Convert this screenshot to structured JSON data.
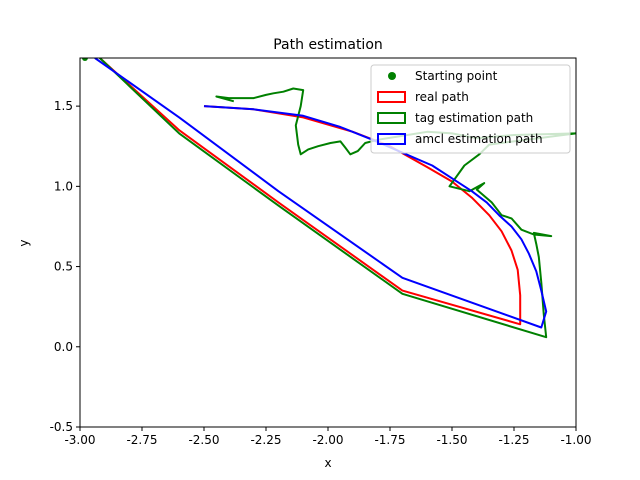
{
  "chart_data": {
    "type": "line",
    "title": "Path estimation",
    "xlabel": "x",
    "ylabel": "y",
    "xlim": [
      -3.0,
      -1.0
    ],
    "ylim": [
      -0.5,
      1.8
    ],
    "xticks": [
      "-3.00",
      "-2.75",
      "-2.50",
      "-2.25",
      "-2.00",
      "-1.75",
      "-1.50",
      "-1.25",
      "-1.00"
    ],
    "xtick_values": [
      -3.0,
      -2.75,
      -2.5,
      -2.25,
      -2.0,
      -1.75,
      -1.5,
      -1.25,
      -1.0
    ],
    "yticks": [
      "-0.5",
      "0.0",
      "0.5",
      "1.0",
      "1.5"
    ],
    "ytick_values": [
      -0.5,
      0.0,
      0.5,
      1.0,
      1.5
    ],
    "grid": false,
    "legend_position": "top-right",
    "legend": [
      {
        "label": "Starting point",
        "kind": "marker",
        "color": "#008000"
      },
      {
        "label": "real path",
        "kind": "patch",
        "color": "#ff0000"
      },
      {
        "label": "tag estimation path",
        "kind": "patch",
        "color": "#008000"
      },
      {
        "label": "amcl estimation path",
        "kind": "patch",
        "color": "#0000ff"
      }
    ],
    "series": [
      {
        "name": "real path",
        "color": "#ff0000",
        "points": [
          [
            -2.5,
            1.5
          ],
          [
            -2.3,
            1.48
          ],
          [
            -2.1,
            1.43
          ],
          [
            -1.9,
            1.34
          ],
          [
            -1.75,
            1.25
          ],
          [
            -1.6,
            1.12
          ],
          [
            -1.5,
            1.03
          ],
          [
            -1.42,
            0.93
          ],
          [
            -1.35,
            0.82
          ],
          [
            -1.3,
            0.72
          ],
          [
            -1.26,
            0.6
          ],
          [
            -1.235,
            0.48
          ],
          [
            -1.225,
            0.32
          ],
          [
            -1.225,
            0.14
          ],
          [
            -1.7,
            0.35
          ],
          [
            -2.2,
            0.9
          ],
          [
            -2.6,
            1.35
          ],
          [
            -2.92,
            1.8
          ]
        ]
      },
      {
        "name": "tag estimation path",
        "color": "#008000",
        "points": [
          [
            -2.38,
            1.53
          ],
          [
            -2.45,
            1.56
          ],
          [
            -2.4,
            1.55
          ],
          [
            -2.3,
            1.55
          ],
          [
            -2.25,
            1.57
          ],
          [
            -2.22,
            1.58
          ],
          [
            -2.18,
            1.59
          ],
          [
            -2.14,
            1.61
          ],
          [
            -2.1,
            1.6
          ],
          [
            -2.11,
            1.5
          ],
          [
            -2.13,
            1.38
          ],
          [
            -2.12,
            1.26
          ],
          [
            -2.11,
            1.2
          ],
          [
            -2.08,
            1.23
          ],
          [
            -2.04,
            1.25
          ],
          [
            -1.99,
            1.27
          ],
          [
            -1.95,
            1.28
          ],
          [
            -1.93,
            1.24
          ],
          [
            -1.91,
            1.2
          ],
          [
            -1.88,
            1.22
          ],
          [
            -1.85,
            1.27
          ],
          [
            -1.8,
            1.29
          ],
          [
            -1.72,
            1.31
          ],
          [
            -1.6,
            1.34
          ],
          [
            -1.5,
            1.33
          ],
          [
            -1.4,
            1.3
          ],
          [
            -1.25,
            1.32
          ],
          [
            -1.0,
            1.33
          ],
          [
            -1.35,
            1.26
          ],
          [
            -1.39,
            1.2
          ],
          [
            -1.45,
            1.13
          ],
          [
            -1.51,
            1.0
          ],
          [
            -1.43,
            0.97
          ],
          [
            -1.37,
            1.02
          ],
          [
            -1.4,
            0.98
          ],
          [
            -1.34,
            0.9
          ],
          [
            -1.3,
            0.82
          ],
          [
            -1.26,
            0.8
          ],
          [
            -1.22,
            0.73
          ],
          [
            -1.17,
            0.7
          ],
          [
            -1.1,
            0.69
          ],
          [
            -1.17,
            0.71
          ],
          [
            -1.16,
            0.64
          ],
          [
            -1.15,
            0.56
          ],
          [
            -1.14,
            0.4
          ],
          [
            -1.13,
            0.2
          ],
          [
            -1.12,
            0.06
          ],
          [
            -1.7,
            0.33
          ],
          [
            -2.2,
            0.88
          ],
          [
            -2.6,
            1.33
          ],
          [
            -2.92,
            1.8
          ]
        ]
      },
      {
        "name": "amcl estimation path",
        "color": "#0000ff",
        "points": [
          [
            -2.5,
            1.5
          ],
          [
            -2.3,
            1.48
          ],
          [
            -2.1,
            1.44
          ],
          [
            -1.95,
            1.37
          ],
          [
            -1.82,
            1.29
          ],
          [
            -1.7,
            1.21
          ],
          [
            -1.58,
            1.13
          ],
          [
            -1.5,
            1.05
          ],
          [
            -1.42,
            0.97
          ],
          [
            -1.36,
            0.9
          ],
          [
            -1.31,
            0.82
          ],
          [
            -1.26,
            0.75
          ],
          [
            -1.22,
            0.67
          ],
          [
            -1.19,
            0.58
          ],
          [
            -1.16,
            0.47
          ],
          [
            -1.14,
            0.35
          ],
          [
            -1.12,
            0.22
          ],
          [
            -1.14,
            0.12
          ],
          [
            -1.7,
            0.43
          ],
          [
            -2.2,
            0.97
          ],
          [
            -2.6,
            1.43
          ],
          [
            -2.94,
            1.8
          ]
        ]
      }
    ],
    "start_point": {
      "x": -2.98,
      "y": 1.8,
      "color": "#008000"
    }
  }
}
